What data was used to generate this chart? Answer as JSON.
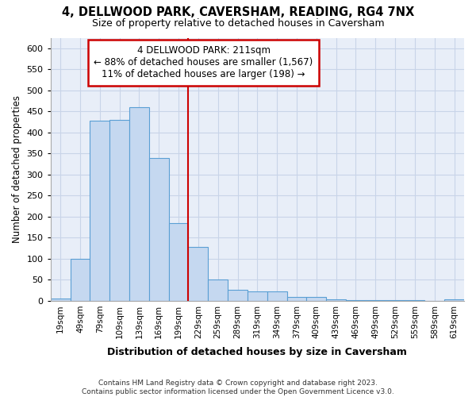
{
  "title": "4, DELLWOOD PARK, CAVERSHAM, READING, RG4 7NX",
  "subtitle": "Size of property relative to detached houses in Caversham",
  "xlabel": "Distribution of detached houses by size in Caversham",
  "ylabel": "Number of detached properties",
  "footer_line1": "Contains HM Land Registry data © Crown copyright and database right 2023.",
  "footer_line2": "Contains public sector information licensed under the Open Government Licence v3.0.",
  "bar_labels": [
    "19sqm",
    "49sqm",
    "79sqm",
    "109sqm",
    "139sqm",
    "169sqm",
    "199sqm",
    "229sqm",
    "259sqm",
    "289sqm",
    "319sqm",
    "349sqm",
    "379sqm",
    "409sqm",
    "439sqm",
    "469sqm",
    "499sqm",
    "529sqm",
    "559sqm",
    "589sqm",
    "619sqm"
  ],
  "bar_values": [
    5,
    100,
    428,
    430,
    460,
    340,
    185,
    128,
    50,
    27,
    22,
    22,
    10,
    10,
    3,
    2,
    1,
    1,
    1,
    0,
    3
  ],
  "bar_color": "#c5d8f0",
  "bar_edge_color": "#5a9fd4",
  "grid_color": "#c8d4e8",
  "background_color": "#e8eef8",
  "vline_x": 7.0,
  "vline_color": "#cc0000",
  "annotation_line1": "4 DELLWOOD PARK: 211sqm",
  "annotation_line2": "← 88% of detached houses are smaller (1,567)",
  "annotation_line3": "11% of detached houses are larger (198) →",
  "annotation_box_color": "#ffffff",
  "annotation_box_edge_color": "#cc0000",
  "ylim": [
    0,
    625
  ],
  "yticks": [
    0,
    50,
    100,
    150,
    200,
    250,
    300,
    350,
    400,
    450,
    500,
    550,
    600
  ]
}
